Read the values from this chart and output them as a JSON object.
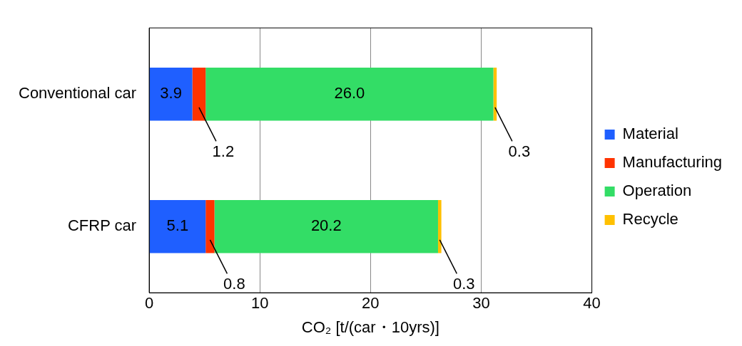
{
  "chart_data": {
    "type": "bar",
    "orientation": "horizontal",
    "stacked": true,
    "xlabel": "CO₂ [t/(car・10yrs)]",
    "categories": [
      "Conventional car",
      "CFRP car"
    ],
    "series": [
      {
        "name": "Material",
        "color": "#1f5fff",
        "values": [
          3.9,
          5.1
        ],
        "value_labels": [
          "3.9",
          "5.1"
        ]
      },
      {
        "name": "Manufacturing",
        "color": "#ff3300",
        "values": [
          1.2,
          0.8
        ],
        "value_labels": [
          "1.2",
          "0.8"
        ]
      },
      {
        "name": "Operation",
        "color": "#33dd66",
        "values": [
          26.0,
          20.2
        ],
        "value_labels": [
          "26.0",
          "20.2"
        ]
      },
      {
        "name": "Recycle",
        "color": "#ffc000",
        "values": [
          0.3,
          0.3
        ],
        "value_labels": [
          "0.3",
          "0.3"
        ]
      }
    ],
    "xlim": [
      0,
      40
    ],
    "xticks": [
      0,
      10,
      20,
      30,
      40
    ],
    "grid": "x",
    "legend": "right"
  }
}
